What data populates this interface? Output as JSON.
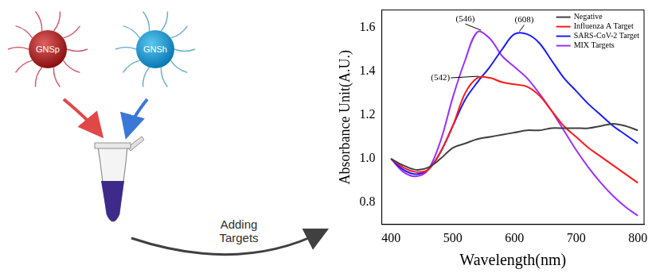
{
  "chart_data": {
    "type": "line",
    "x_label": "Wavelength(nm)",
    "y_label": "Absorbance Unit(A.U.)",
    "xlim": [
      385,
      810
    ],
    "xticks": [
      400,
      500,
      600,
      700,
      800
    ],
    "ylim": [
      0.7,
      1.68
    ],
    "yticks": [
      0.8,
      {
        "value": 1,
        "label": "1.0"
      },
      1.2,
      1.4,
      1.6
    ],
    "grid": false,
    "legend": "top-right",
    "x": [
      400,
      420,
      440,
      460,
      480,
      500,
      520,
      540,
      560,
      580,
      600,
      620,
      640,
      660,
      680,
      700,
      720,
      740,
      760,
      780,
      800
    ],
    "series": [
      {
        "name": "Negative",
        "color": "#404040",
        "values": [
          1.0,
          0.97,
          0.95,
          0.96,
          1.0,
          1.05,
          1.07,
          1.09,
          1.1,
          1.11,
          1.12,
          1.13,
          1.13,
          1.14,
          1.14,
          1.14,
          1.14,
          1.15,
          1.16,
          1.15,
          1.13
        ]
      },
      {
        "name": "Influenza A Target",
        "color": "#ff1a1a",
        "values": [
          1.0,
          0.96,
          0.94,
          0.95,
          1.03,
          1.15,
          1.3,
          1.37,
          1.37,
          1.35,
          1.34,
          1.33,
          1.29,
          1.22,
          1.15,
          1.1,
          1.05,
          1.01,
          0.97,
          0.93,
          0.89
        ]
      },
      {
        "name": "SARS-CoV-2 Target",
        "color": "#1a1aff",
        "values": [
          1.0,
          0.95,
          0.93,
          0.95,
          1.03,
          1.15,
          1.27,
          1.35,
          1.42,
          1.5,
          1.57,
          1.57,
          1.53,
          1.45,
          1.37,
          1.31,
          1.25,
          1.2,
          1.15,
          1.11,
          1.07
        ]
      },
      {
        "name": "MIX Targets",
        "color": "#9b30ff",
        "values": [
          1.0,
          0.94,
          0.92,
          0.95,
          1.08,
          1.28,
          1.45,
          1.58,
          1.55,
          1.47,
          1.42,
          1.37,
          1.3,
          1.22,
          1.13,
          1.04,
          0.96,
          0.89,
          0.83,
          0.78,
          0.74
        ]
      }
    ],
    "annotations": [
      {
        "text": "(546)",
        "x": 546,
        "y": 1.58
      },
      {
        "text": "(608)",
        "x": 608,
        "y": 1.575
      },
      {
        "text": "(542)",
        "x": 542,
        "y": 1.37
      }
    ]
  },
  "diagram": {
    "nodes": [
      {
        "label": "GNSp"
      },
      {
        "label": "GNSh"
      }
    ],
    "arrow_label": "Adding Targets"
  }
}
